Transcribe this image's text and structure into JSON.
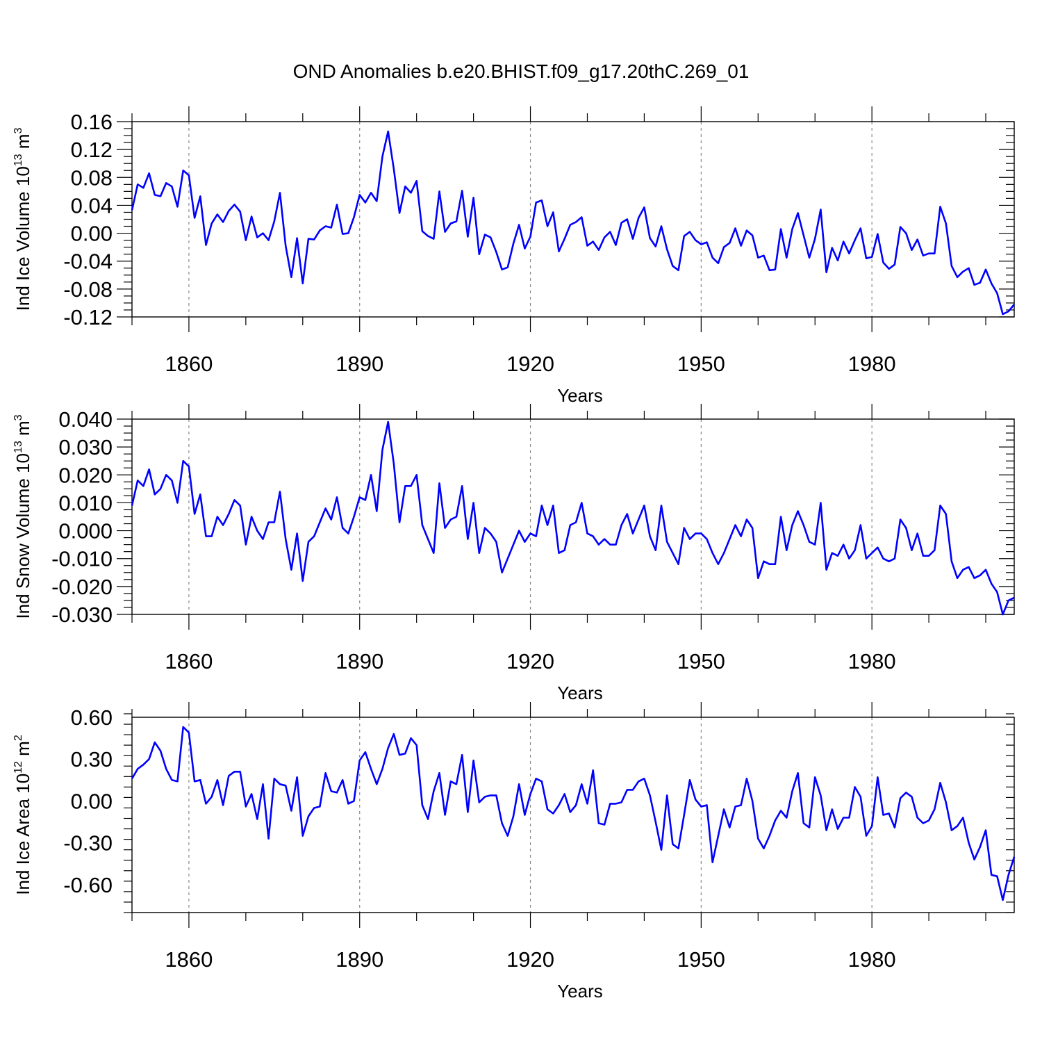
{
  "title": "OND Anomalies b.e20.BHIST.f09_g17.20thC.269_01",
  "colors": {
    "series": "#0000ff",
    "axis": "#000000",
    "grid": "#888888"
  },
  "chart_data": [
    {
      "type": "line",
      "title": "OND Anomalies b.e20.BHIST.f09_g17.20thC.269_01",
      "xlabel": "Years",
      "ylabel": {
        "main": "Ind Ice Volume 10",
        "exp": "13",
        "unit": " m",
        "unit_exp": "3"
      },
      "xlim": [
        1850,
        2005
      ],
      "ylim": [
        -0.12,
        0.16
      ],
      "xticks": [
        1860,
        1890,
        1920,
        1950,
        1980
      ],
      "xtick_labels": [
        "1860",
        "1890",
        "1920",
        "1950",
        "1980"
      ],
      "yticks": [
        -0.12,
        -0.08,
        -0.04,
        0.0,
        0.04,
        0.08,
        0.12,
        0.16
      ],
      "ytick_labels": [
        "-0.12",
        "-0.08",
        "-0.04",
        "0.00",
        "0.04",
        "0.08",
        "0.12",
        "0.16"
      ],
      "grid": "vertical-dashed",
      "series": [
        {
          "name": "Ind Ice Volume",
          "x_start": 1850,
          "x_step": 1,
          "values": [
            0.033,
            0.07,
            0.065,
            0.086,
            0.055,
            0.053,
            0.072,
            0.067,
            0.038,
            0.09,
            0.083,
            0.022,
            0.053,
            -0.017,
            0.014,
            0.027,
            0.016,
            0.032,
            0.041,
            0.031,
            -0.01,
            0.024,
            -0.006,
            0.0,
            -0.01,
            0.017,
            0.058,
            -0.018,
            -0.063,
            -0.007,
            -0.072,
            -0.008,
            -0.009,
            0.004,
            0.01,
            0.008,
            0.041,
            -0.001,
            0.0,
            0.023,
            0.055,
            0.044,
            0.058,
            0.046,
            0.11,
            0.146,
            0.092,
            0.029,
            0.067,
            0.058,
            0.075,
            0.003,
            -0.004,
            -0.008,
            0.06,
            0.002,
            0.014,
            0.017,
            0.061,
            -0.005,
            0.051,
            -0.03,
            -0.002,
            -0.006,
            -0.027,
            -0.052,
            -0.049,
            -0.015,
            0.012,
            -0.022,
            -0.005,
            0.044,
            0.047,
            0.01,
            0.03,
            -0.026,
            -0.008,
            0.012,
            0.016,
            0.023,
            -0.018,
            -0.012,
            -0.024,
            -0.006,
            0.002,
            -0.017,
            0.015,
            0.02,
            -0.008,
            0.022,
            0.037,
            -0.007,
            -0.019,
            0.01,
            -0.023,
            -0.047,
            -0.053,
            -0.004,
            0.002,
            -0.01,
            -0.016,
            -0.013,
            -0.035,
            -0.043,
            -0.02,
            -0.014,
            0.007,
            -0.018,
            0.004,
            -0.003,
            -0.035,
            -0.032,
            -0.053,
            -0.052,
            0.006,
            -0.035,
            0.006,
            0.029,
            -0.003,
            -0.035,
            -0.008,
            0.034,
            -0.056,
            -0.021,
            -0.039,
            -0.012,
            -0.029,
            -0.01,
            0.007,
            -0.036,
            -0.034,
            -0.001,
            -0.042,
            -0.051,
            -0.045,
            0.009,
            0.0,
            -0.024,
            -0.009,
            -0.032,
            -0.029,
            -0.029,
            0.038,
            0.014,
            -0.047,
            -0.063,
            -0.055,
            -0.05,
            -0.074,
            -0.071,
            -0.052,
            -0.072,
            -0.086,
            -0.116,
            -0.112,
            -0.102
          ]
        }
      ]
    },
    {
      "type": "line",
      "xlabel": "Years",
      "ylabel": {
        "main": "Ind Snow Volume 10",
        "exp": "13",
        "unit": " m",
        "unit_exp": "3"
      },
      "xlim": [
        1850,
        2005
      ],
      "ylim": [
        -0.03,
        0.04
      ],
      "xticks": [
        1860,
        1890,
        1920,
        1950,
        1980
      ],
      "xtick_labels": [
        "1860",
        "1890",
        "1920",
        "1950",
        "1980"
      ],
      "yticks": [
        -0.03,
        -0.02,
        -0.01,
        0.0,
        0.01,
        0.02,
        0.03,
        0.04
      ],
      "ytick_labels": [
        "-0.030",
        "-0.020",
        "-0.010",
        "0.000",
        "0.010",
        "0.020",
        "0.030",
        "0.040"
      ],
      "grid": "vertical-dashed",
      "series": [
        {
          "name": "Ind Snow Volume",
          "x_start": 1850,
          "x_step": 1,
          "values": [
            0.009,
            0.018,
            0.016,
            0.022,
            0.013,
            0.015,
            0.02,
            0.018,
            0.01,
            0.025,
            0.023,
            0.006,
            0.013,
            -0.002,
            -0.002,
            0.005,
            0.002,
            0.006,
            0.011,
            0.009,
            -0.005,
            0.005,
            0.0,
            -0.003,
            0.003,
            0.003,
            0.014,
            -0.003,
            -0.014,
            -0.001,
            -0.018,
            -0.004,
            -0.002,
            0.003,
            0.008,
            0.004,
            0.012,
            0.001,
            -0.001,
            0.005,
            0.012,
            0.011,
            0.02,
            0.007,
            0.029,
            0.039,
            0.024,
            0.003,
            0.016,
            0.016,
            0.02,
            0.002,
            -0.003,
            -0.008,
            0.017,
            0.001,
            0.004,
            0.005,
            0.016,
            -0.003,
            0.01,
            -0.008,
            0.001,
            -0.001,
            -0.004,
            -0.015,
            -0.01,
            -0.005,
            0.0,
            -0.004,
            -0.001,
            -0.002,
            0.009,
            0.002,
            0.009,
            -0.008,
            -0.007,
            0.002,
            0.003,
            0.01,
            -0.001,
            -0.002,
            -0.005,
            -0.003,
            -0.005,
            -0.005,
            0.002,
            0.006,
            -0.001,
            0.004,
            0.009,
            -0.002,
            -0.007,
            0.009,
            -0.004,
            -0.008,
            -0.012,
            0.001,
            -0.003,
            -0.001,
            -0.001,
            -0.003,
            -0.008,
            -0.012,
            -0.008,
            -0.003,
            0.002,
            -0.002,
            0.004,
            0.001,
            -0.017,
            -0.011,
            -0.012,
            -0.012,
            0.005,
            -0.007,
            0.002,
            0.007,
            0.002,
            -0.004,
            -0.005,
            0.01,
            -0.014,
            -0.008,
            -0.009,
            -0.005,
            -0.01,
            -0.007,
            0.002,
            -0.01,
            -0.008,
            -0.006,
            -0.01,
            -0.011,
            -0.01,
            0.004,
            0.001,
            -0.007,
            -0.001,
            -0.009,
            -0.009,
            -0.007,
            0.009,
            0.006,
            -0.011,
            -0.017,
            -0.014,
            -0.013,
            -0.017,
            -0.016,
            -0.014,
            -0.019,
            -0.022,
            -0.03,
            -0.025,
            -0.024
          ]
        }
      ]
    },
    {
      "type": "line",
      "xlabel": "Years",
      "ylabel": {
        "main": "Ind Ice Area 10",
        "exp": "12",
        "unit": " m",
        "unit_exp": "2"
      },
      "xlim": [
        1850,
        2005
      ],
      "ylim": [
        -0.8,
        0.6
      ],
      "xticks": [
        1860,
        1890,
        1920,
        1950,
        1980
      ],
      "xtick_labels": [
        "1860",
        "1890",
        "1920",
        "1950",
        "1980"
      ],
      "yticks": [
        -0.6,
        -0.3,
        0.0,
        0.3,
        0.6
      ],
      "ytick_labels": [
        "-0.60",
        "-0.30",
        "0.00",
        "0.30",
        "0.60"
      ],
      "grid": "vertical-dashed",
      "series": [
        {
          "name": "Ind Ice Area",
          "x_start": 1850,
          "x_step": 1,
          "values": [
            0.16,
            0.23,
            0.26,
            0.3,
            0.42,
            0.36,
            0.23,
            0.15,
            0.14,
            0.53,
            0.49,
            0.14,
            0.15,
            -0.02,
            0.03,
            0.15,
            -0.03,
            0.18,
            0.21,
            0.21,
            -0.04,
            0.05,
            -0.13,
            0.12,
            -0.27,
            0.16,
            0.12,
            0.11,
            -0.07,
            0.17,
            -0.25,
            -0.11,
            -0.05,
            -0.04,
            0.2,
            0.07,
            0.06,
            0.15,
            -0.02,
            0.0,
            0.29,
            0.35,
            0.23,
            0.12,
            0.23,
            0.38,
            0.48,
            0.33,
            0.34,
            0.45,
            0.4,
            -0.03,
            -0.13,
            0.07,
            0.2,
            -0.1,
            0.14,
            0.12,
            0.33,
            -0.08,
            0.29,
            -0.01,
            0.03,
            0.04,
            0.04,
            -0.16,
            -0.25,
            -0.11,
            0.12,
            -0.1,
            0.05,
            0.16,
            0.14,
            -0.06,
            -0.09,
            -0.03,
            0.05,
            -0.08,
            -0.03,
            0.12,
            -0.02,
            0.22,
            -0.16,
            -0.17,
            -0.02,
            -0.02,
            -0.01,
            0.08,
            0.08,
            0.14,
            0.16,
            0.04,
            -0.15,
            -0.35,
            0.04,
            -0.31,
            -0.34,
            -0.1,
            0.15,
            0.01,
            -0.04,
            -0.03,
            -0.44,
            -0.25,
            -0.06,
            -0.19,
            -0.04,
            -0.03,
            0.16,
            0.0,
            -0.27,
            -0.34,
            -0.25,
            -0.14,
            -0.07,
            -0.12,
            0.07,
            0.2,
            -0.16,
            -0.19,
            0.17,
            0.04,
            -0.21,
            -0.06,
            -0.2,
            -0.12,
            -0.12,
            0.1,
            0.03,
            -0.25,
            -0.18,
            0.17,
            -0.1,
            -0.09,
            -0.19,
            0.02,
            0.06,
            0.03,
            -0.12,
            -0.16,
            -0.14,
            -0.06,
            0.13,
            -0.01,
            -0.21,
            -0.18,
            -0.12,
            -0.3,
            -0.42,
            -0.33,
            -0.21,
            -0.53,
            -0.54,
            -0.71,
            -0.53,
            -0.4
          ]
        }
      ]
    }
  ]
}
